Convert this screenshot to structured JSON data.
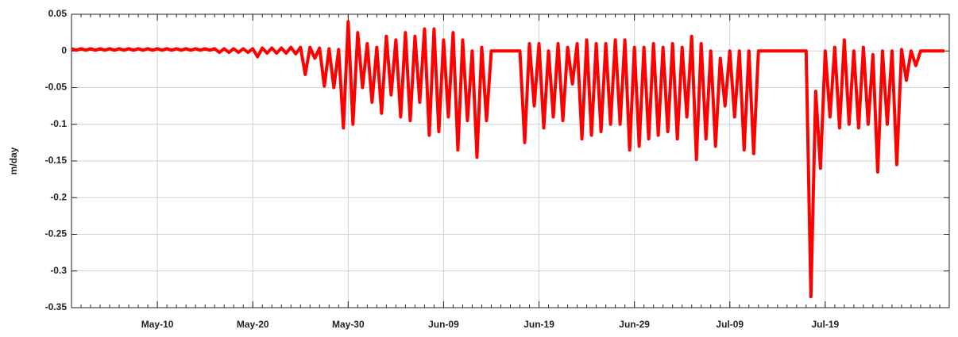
{
  "chart_data": {
    "type": "line",
    "ylabel": "m/day",
    "color": "#ff0000",
    "grid": true,
    "ylim": [
      -0.35,
      0.05
    ],
    "yticks": [
      0.05,
      0,
      -0.05,
      -0.1,
      -0.15,
      -0.2,
      -0.25,
      -0.3,
      -0.35
    ],
    "xlim": [
      "May-01 00:00",
      "Aug-01 00:00"
    ],
    "xticks": [
      "May-10",
      "May-20",
      "May-30",
      "Jun-09",
      "Jun-19",
      "Jun-29",
      "Jul-09",
      "Jul-19"
    ],
    "x": [
      "May-01 00:00",
      "May-01 12:00",
      "May-02 00:00",
      "May-02 12:00",
      "May-03 00:00",
      "May-03 12:00",
      "May-04 00:00",
      "May-04 12:00",
      "May-05 00:00",
      "May-05 12:00",
      "May-06 00:00",
      "May-06 12:00",
      "May-07 00:00",
      "May-07 12:00",
      "May-08 00:00",
      "May-08 12:00",
      "May-09 00:00",
      "May-09 12:00",
      "May-10 00:00",
      "May-10 12:00",
      "May-11 00:00",
      "May-11 12:00",
      "May-12 00:00",
      "May-12 12:00",
      "May-13 00:00",
      "May-13 12:00",
      "May-14 00:00",
      "May-14 12:00",
      "May-15 00:00",
      "May-15 12:00",
      "May-16 00:00",
      "May-16 12:00",
      "May-17 00:00",
      "May-17 12:00",
      "May-18 00:00",
      "May-18 12:00",
      "May-19 00:00",
      "May-19 12:00",
      "May-20 00:00",
      "May-20 12:00",
      "May-21 00:00",
      "May-21 12:00",
      "May-22 00:00",
      "May-22 12:00",
      "May-23 00:00",
      "May-23 12:00",
      "May-24 00:00",
      "May-24 12:00",
      "May-25 00:00",
      "May-25 12:00",
      "May-26 00:00",
      "May-26 12:00",
      "May-27 00:00",
      "May-27 12:00",
      "May-28 00:00",
      "May-28 12:00",
      "May-29 00:00",
      "May-29 12:00",
      "May-30 00:00",
      "May-30 12:00",
      "May-31 00:00",
      "May-31 12:00",
      "Jun-01 00:00",
      "Jun-01 12:00",
      "Jun-02 00:00",
      "Jun-02 12:00",
      "Jun-03 00:00",
      "Jun-03 12:00",
      "Jun-04 00:00",
      "Jun-04 12:00",
      "Jun-05 00:00",
      "Jun-05 12:00",
      "Jun-06 00:00",
      "Jun-06 12:00",
      "Jun-07 00:00",
      "Jun-07 12:00",
      "Jun-08 00:00",
      "Jun-08 12:00",
      "Jun-09 00:00",
      "Jun-09 12:00",
      "Jun-10 00:00",
      "Jun-10 12:00",
      "Jun-11 00:00",
      "Jun-11 12:00",
      "Jun-12 00:00",
      "Jun-12 12:00",
      "Jun-13 00:00",
      "Jun-13 12:00",
      "Jun-14 00:00",
      "Jun-14 12:00",
      "Jun-15 00:00",
      "Jun-15 12:00",
      "Jun-16 00:00",
      "Jun-16 12:00",
      "Jun-17 00:00",
      "Jun-17 12:00",
      "Jun-18 00:00",
      "Jun-18 12:00",
      "Jun-19 00:00",
      "Jun-19 12:00",
      "Jun-20 00:00",
      "Jun-20 12:00",
      "Jun-21 00:00",
      "Jun-21 12:00",
      "Jun-22 00:00",
      "Jun-22 12:00",
      "Jun-23 00:00",
      "Jun-23 12:00",
      "Jun-24 00:00",
      "Jun-24 12:00",
      "Jun-25 00:00",
      "Jun-25 12:00",
      "Jun-26 00:00",
      "Jun-26 12:00",
      "Jun-27 00:00",
      "Jun-27 12:00",
      "Jun-28 00:00",
      "Jun-28 12:00",
      "Jun-29 00:00",
      "Jun-29 12:00",
      "Jun-30 00:00",
      "Jun-30 12:00",
      "Jul-01 00:00",
      "Jul-01 12:00",
      "Jul-02 00:00",
      "Jul-02 12:00",
      "Jul-03 00:00",
      "Jul-03 12:00",
      "Jul-04 00:00",
      "Jul-04 12:00",
      "Jul-05 00:00",
      "Jul-05 12:00",
      "Jul-06 00:00",
      "Jul-06 12:00",
      "Jul-07 00:00",
      "Jul-07 12:00",
      "Jul-08 00:00",
      "Jul-08 12:00",
      "Jul-09 00:00",
      "Jul-09 12:00",
      "Jul-10 00:00",
      "Jul-10 12:00",
      "Jul-11 00:00",
      "Jul-11 12:00",
      "Jul-12 00:00",
      "Jul-12 12:00",
      "Jul-13 00:00",
      "Jul-13 12:00",
      "Jul-14 00:00",
      "Jul-14 12:00",
      "Jul-15 00:00",
      "Jul-15 12:00",
      "Jul-16 00:00",
      "Jul-16 12:00",
      "Jul-17 00:00",
      "Jul-17 12:00",
      "Jul-18 00:00",
      "Jul-18 12:00",
      "Jul-19 00:00",
      "Jul-19 12:00",
      "Jul-20 00:00",
      "Jul-20 12:00",
      "Jul-21 00:00",
      "Jul-21 12:00",
      "Jul-22 00:00",
      "Jul-22 12:00",
      "Jul-23 00:00",
      "Jul-23 12:00",
      "Jul-24 00:00",
      "Jul-24 12:00",
      "Jul-25 00:00",
      "Jul-25 12:00",
      "Jul-26 00:00",
      "Jul-26 12:00",
      "Jul-27 00:00",
      "Jul-27 12:00",
      "Jul-28 00:00",
      "Jul-28 12:00",
      "Jul-29 00:00",
      "Jul-29 12:00",
      "Jul-30 00:00",
      "Jul-30 12:00",
      "Jul-31 00:00",
      "Jul-31 12:00"
    ],
    "values": [
      0.003,
      0.001,
      0.003,
      0.001,
      0.003,
      0.001,
      0.003,
      0.001,
      0.003,
      0.001,
      0.003,
      0.001,
      0.003,
      0.001,
      0.003,
      0.001,
      0.003,
      0.001,
      0.003,
      0.001,
      0.003,
      0.001,
      0.003,
      0.001,
      0.003,
      0.001,
      0.003,
      0.001,
      0.003,
      0.001,
      0.003,
      -0.002,
      0.003,
      -0.002,
      0.003,
      -0.002,
      0.003,
      -0.002,
      0.003,
      -0.008,
      0.004,
      -0.003,
      0.004,
      -0.003,
      0.004,
      -0.003,
      0.005,
      -0.004,
      0.005,
      -0.032,
      0.005,
      -0.01,
      0.004,
      -0.048,
      0.003,
      -0.05,
      0.002,
      -0.105,
      0.04,
      -0.1,
      0.025,
      -0.05,
      0.01,
      -0.07,
      0.005,
      -0.085,
      0.02,
      -0.06,
      0.015,
      -0.09,
      0.025,
      -0.095,
      0.02,
      -0.07,
      0.03,
      -0.115,
      0.03,
      -0.11,
      0.015,
      -0.09,
      0.025,
      -0.135,
      0.015,
      -0.095,
      0,
      -0.145,
      0.005,
      -0.095,
      0,
      0,
      0,
      0,
      0,
      0,
      0,
      -0.125,
      0.01,
      -0.075,
      0.01,
      -0.105,
      0,
      -0.09,
      0.01,
      -0.095,
      0.005,
      -0.045,
      0.01,
      -0.12,
      0.015,
      -0.115,
      0.01,
      -0.11,
      0.01,
      -0.1,
      0.015,
      -0.1,
      0.015,
      -0.135,
      0.005,
      -0.13,
      0.005,
      -0.12,
      0.01,
      -0.115,
      0.005,
      -0.11,
      0.01,
      -0.12,
      0.005,
      -0.09,
      0.02,
      -0.148,
      0.01,
      -0.12,
      0,
      -0.13,
      -0.01,
      -0.075,
      0,
      -0.09,
      0,
      -0.135,
      0,
      -0.14,
      0,
      0,
      0,
      0,
      0,
      0,
      0,
      0,
      0,
      0,
      0,
      -0.335,
      -0.055,
      -0.16,
      0,
      -0.09,
      0.005,
      -0.105,
      0.015,
      -0.1,
      0,
      -0.105,
      0.005,
      -0.1,
      -0.005,
      -0.165,
      0,
      -0.1,
      0,
      -0.155,
      0.002,
      -0.04,
      0,
      -0.02,
      0,
      0,
      0,
      0,
      0,
      0
    ]
  }
}
